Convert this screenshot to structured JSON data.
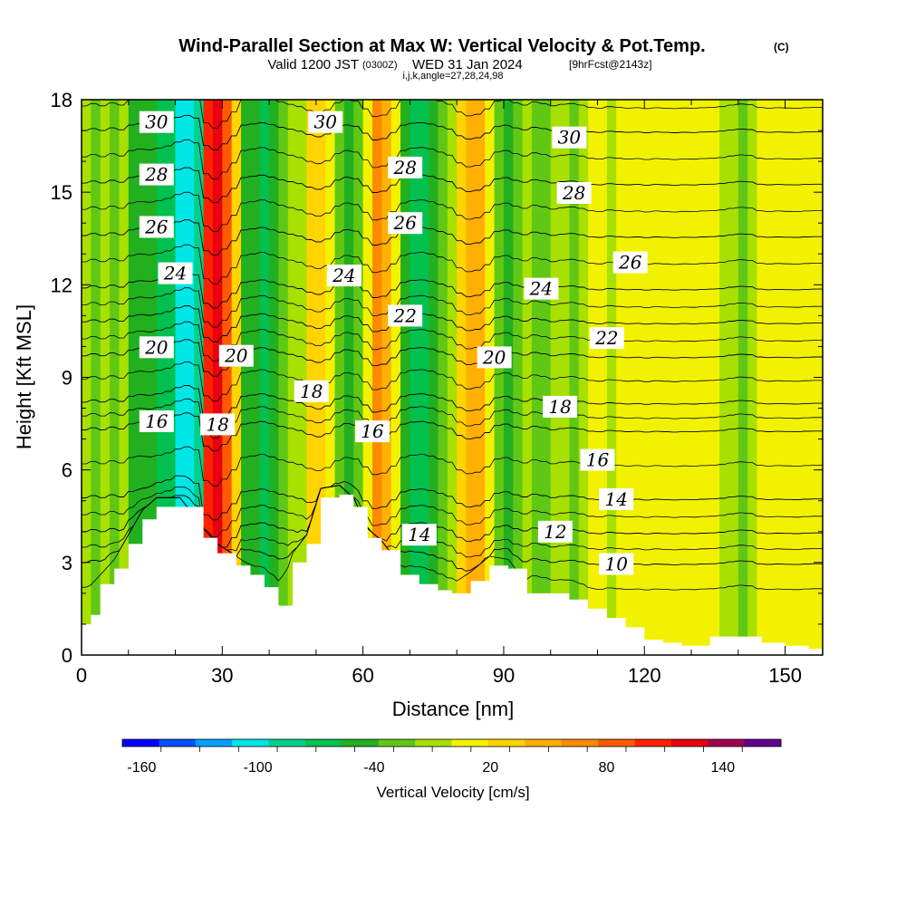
{
  "header": {
    "title": "Wind-Parallel Section at Max W: Vertical Velocity & Pot.Temp.",
    "title_mark": "(C)",
    "valid_prefix": "Valid 1200 JST",
    "valid_utc": "(0300Z)",
    "valid_date": "WED 31 Jan 2024",
    "forecast": "[9hrFcst@2143z]",
    "ijk_line": "i,j,k,angle=27,28,24,98"
  },
  "chart_data": {
    "type": "heatmap",
    "xlabel": "Distance [nm]",
    "ylabel": "Height [Kft MSL]",
    "xlim": [
      0,
      158
    ],
    "ylim": [
      0,
      18
    ],
    "x_ticks": [
      0,
      30,
      60,
      90,
      120,
      150
    ],
    "y_ticks": [
      0,
      3,
      6,
      9,
      12,
      15,
      18
    ],
    "grid": false,
    "colorbar": {
      "label": "Vertical Velocity [cm/s]",
      "placement": "bottom",
      "min": -170,
      "max": 170,
      "step": 20,
      "tick_labels": [
        "-160",
        "-100",
        "-40",
        "20",
        "80",
        "140"
      ],
      "tick_values": [
        -160,
        -100,
        -40,
        20,
        80,
        140
      ],
      "colors": [
        "#0000ff",
        "#0050ff",
        "#00a0ff",
        "#00e6e6",
        "#00d08c",
        "#00c050",
        "#22b020",
        "#60c814",
        "#a8e000",
        "#f2f200",
        "#ffd400",
        "#ffb000",
        "#ff8a00",
        "#ff5a00",
        "#ff2200",
        "#e80010",
        "#a00050",
        "#60008c"
      ]
    },
    "vertical_velocity_bands": [
      {
        "x": 0,
        "w": 1
      },
      {
        "x": 2,
        "w": -15
      },
      {
        "x": 4,
        "w": 0
      },
      {
        "x": 6,
        "w": -20
      },
      {
        "x": 8,
        "w": -5
      },
      {
        "x": 10,
        "w": -40
      },
      {
        "x": 12,
        "w": -50
      },
      {
        "x": 14,
        "w": -45
      },
      {
        "x": 16,
        "w": -55
      },
      {
        "x": 18,
        "w": -70
      },
      {
        "x": 20,
        "w": -95
      },
      {
        "x": 22,
        "w": -110
      },
      {
        "x": 24,
        "w": -90
      },
      {
        "x": 26,
        "w": 110
      },
      {
        "x": 28,
        "w": 145
      },
      {
        "x": 30,
        "w": 100
      },
      {
        "x": 32,
        "w": 40
      },
      {
        "x": 34,
        "w": -40
      },
      {
        "x": 36,
        "w": -50
      },
      {
        "x": 38,
        "w": -60
      },
      {
        "x": 40,
        "w": -45
      },
      {
        "x": 42,
        "w": -25
      },
      {
        "x": 44,
        "w": -10
      },
      {
        "x": 46,
        "w": 5
      },
      {
        "x": 48,
        "w": 30
      },
      {
        "x": 50,
        "w": 45
      },
      {
        "x": 52,
        "w": 25
      },
      {
        "x": 54,
        "w": -20
      },
      {
        "x": 56,
        "w": -40
      },
      {
        "x": 58,
        "w": -30
      },
      {
        "x": 60,
        "w": 20
      },
      {
        "x": 62,
        "w": 70
      },
      {
        "x": 64,
        "w": 60
      },
      {
        "x": 66,
        "w": 15
      },
      {
        "x": 68,
        "w": -40
      },
      {
        "x": 70,
        "w": -55
      },
      {
        "x": 72,
        "w": -60
      },
      {
        "x": 74,
        "w": -50
      },
      {
        "x": 76,
        "w": -30
      },
      {
        "x": 78,
        "w": -10
      },
      {
        "x": 80,
        "w": 40
      },
      {
        "x": 82,
        "w": 65
      },
      {
        "x": 84,
        "w": 55
      },
      {
        "x": 86,
        "w": 20
      },
      {
        "x": 88,
        "w": -30
      },
      {
        "x": 90,
        "w": -40
      },
      {
        "x": 92,
        "w": -20
      },
      {
        "x": 94,
        "w": -5
      },
      {
        "x": 96,
        "w": -25
      },
      {
        "x": 98,
        "w": -15
      },
      {
        "x": 100,
        "w": 0
      },
      {
        "x": 102,
        "w": -10
      },
      {
        "x": 104,
        "w": -15
      },
      {
        "x": 106,
        "w": -5
      },
      {
        "x": 108,
        "w": 10
      },
      {
        "x": 110,
        "w": 15
      },
      {
        "x": 112,
        "w": 5
      },
      {
        "x": 114,
        "w": 10
      },
      {
        "x": 116,
        "w": 15
      },
      {
        "x": 118,
        "w": 12
      },
      {
        "x": 120,
        "w": 18
      },
      {
        "x": 122,
        "w": 12
      },
      {
        "x": 124,
        "w": 15
      },
      {
        "x": 126,
        "w": 18
      },
      {
        "x": 128,
        "w": 14
      },
      {
        "x": 130,
        "w": 16
      },
      {
        "x": 132,
        "w": 12
      },
      {
        "x": 134,
        "w": 10
      },
      {
        "x": 136,
        "w": 5
      },
      {
        "x": 138,
        "w": -5
      },
      {
        "x": 140,
        "w": -12
      },
      {
        "x": 142,
        "w": -8
      },
      {
        "x": 144,
        "w": 10
      },
      {
        "x": 146,
        "w": 15
      },
      {
        "x": 148,
        "w": 12
      },
      {
        "x": 150,
        "w": 14
      },
      {
        "x": 152,
        "w": 16
      },
      {
        "x": 154,
        "w": 12
      },
      {
        "x": 156,
        "w": 10
      }
    ],
    "terrain": [
      [
        0,
        1.0
      ],
      [
        2,
        1.3
      ],
      [
        4,
        2.3
      ],
      [
        7,
        2.8
      ],
      [
        10,
        3.6
      ],
      [
        13,
        4.4
      ],
      [
        16,
        4.8
      ],
      [
        21,
        4.8
      ],
      [
        26,
        3.8
      ],
      [
        29,
        3.3
      ],
      [
        33,
        2.9
      ],
      [
        36,
        2.6
      ],
      [
        39,
        2.2
      ],
      [
        42,
        1.6
      ],
      [
        45,
        3.0
      ],
      [
        48,
        3.6
      ],
      [
        51,
        5.1
      ],
      [
        55,
        5.2
      ],
      [
        58,
        4.8
      ],
      [
        61,
        3.8
      ],
      [
        64,
        3.4
      ],
      [
        68,
        2.6
      ],
      [
        72,
        2.3
      ],
      [
        76,
        2.1
      ],
      [
        79,
        2.0
      ],
      [
        83,
        2.4
      ],
      [
        87,
        2.9
      ],
      [
        91,
        2.8
      ],
      [
        95,
        2.0
      ],
      [
        100,
        2.0
      ],
      [
        104,
        1.8
      ],
      [
        108,
        1.5
      ],
      [
        112,
        1.2
      ],
      [
        116,
        0.9
      ],
      [
        120,
        0.5
      ],
      [
        124,
        0.4
      ],
      [
        128,
        0.3
      ],
      [
        134,
        0.6
      ],
      [
        140,
        0.6
      ],
      [
        145,
        0.4
      ],
      [
        150,
        0.3
      ],
      [
        155,
        0.2
      ],
      [
        158,
        0.1
      ]
    ],
    "isentropes": [
      {
        "theta": 10,
        "base_height": 3.0,
        "label": "10",
        "label_x": 114
      },
      {
        "theta": 12,
        "base_height": 4.0,
        "label": "12",
        "label_x": 101
      },
      {
        "theta": 14,
        "base_height": 5.1,
        "label": "14",
        "label_x": 114
      },
      {
        "theta": 14,
        "base_height": 3.6,
        "label": "14",
        "label_x": 72
      },
      {
        "theta": 16,
        "base_height": 7.3,
        "label": "16",
        "label_x": 16
      },
      {
        "theta": 16,
        "base_height": 6.4,
        "label": "16",
        "label_x": 110
      },
      {
        "theta": 16,
        "base_height": 7.6,
        "label": "16",
        "label_x": 62
      },
      {
        "theta": 18,
        "base_height": 8.2,
        "label": "18",
        "label_x": 29
      },
      {
        "theta": 18,
        "base_height": 8.7,
        "label": "18",
        "label_x": 49
      },
      {
        "theta": 18,
        "base_height": 8.0,
        "label": "18",
        "label_x": 102
      },
      {
        "theta": 20,
        "base_height": 9.7,
        "label": "20",
        "label_x": 16
      },
      {
        "theta": 20,
        "base_height": 9.9,
        "label": "20",
        "label_x": 33
      },
      {
        "theta": 20,
        "base_height": 9.5,
        "label": "20",
        "label_x": 88
      },
      {
        "theta": 22,
        "base_height": 10.8,
        "label": "22",
        "label_x": 69
      },
      {
        "theta": 22,
        "base_height": 10.3,
        "label": "22",
        "label_x": 112
      },
      {
        "theta": 24,
        "base_height": 11.9,
        "label": "24",
        "label_x": 20
      },
      {
        "theta": 24,
        "base_height": 12.1,
        "label": "24",
        "label_x": 56
      },
      {
        "theta": 24,
        "base_height": 11.8,
        "label": "24",
        "label_x": 98
      },
      {
        "theta": 26,
        "base_height": 13.6,
        "label": "26",
        "label_x": 16
      },
      {
        "theta": 26,
        "base_height": 13.8,
        "label": "26",
        "label_x": 69
      },
      {
        "theta": 26,
        "base_height": 12.8,
        "label": "26",
        "label_x": 117
      },
      {
        "theta": 28,
        "base_height": 15.3,
        "label": "28",
        "label_x": 16
      },
      {
        "theta": 28,
        "base_height": 15.6,
        "label": "28",
        "label_x": 69
      },
      {
        "theta": 28,
        "base_height": 14.9,
        "label": "28",
        "label_x": 105
      },
      {
        "theta": 30,
        "base_height": 17.0,
        "label": "30",
        "label_x": 16
      },
      {
        "theta": 30,
        "base_height": 17.4,
        "label": "30",
        "label_x": 52
      },
      {
        "theta": 30,
        "base_height": 16.7,
        "label": "30",
        "label_x": 104
      }
    ]
  }
}
